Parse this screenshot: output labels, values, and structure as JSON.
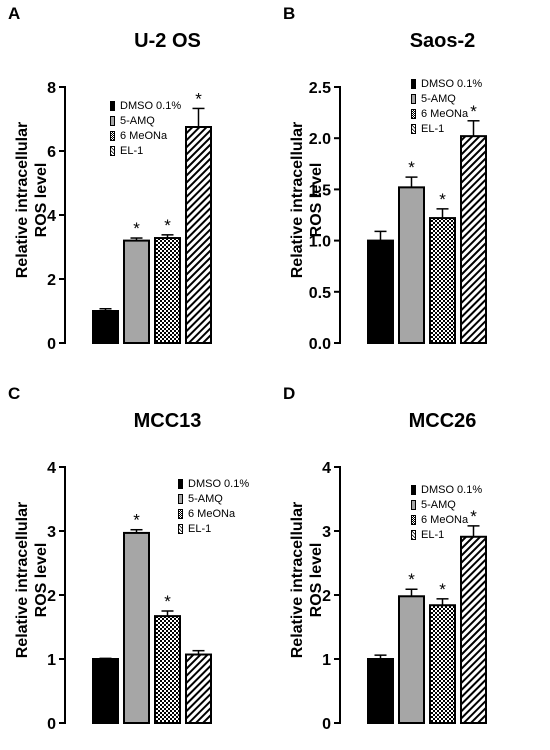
{
  "legend_fills": [
    "#000000",
    "#a6a6a6",
    "url(#checker)",
    "url(#diag)"
  ],
  "chart_data": [
    {
      "letter": "A",
      "type": "bar",
      "title": "U-2 OS",
      "ylabel_lines": [
        "Relative intracellular",
        "ROS level"
      ],
      "categories": [
        "DMSO 0.1%",
        "5-AMQ",
        "6 MeONa",
        "EL-1"
      ],
      "values": [
        1.0,
        3.2,
        3.28,
        6.75
      ],
      "errors": [
        0.07,
        0.08,
        0.1,
        0.58
      ],
      "significant": [
        false,
        true,
        true,
        true
      ],
      "ylim": [
        0,
        8
      ],
      "yticks": [
        0,
        2,
        4,
        6,
        8
      ],
      "ytick_labels": [
        "0",
        "2",
        "4",
        "6",
        "8"
      ],
      "legend": [
        "DMSO 0.1%",
        "5-AMQ",
        "6 MeONa",
        "EL-1"
      ]
    },
    {
      "letter": "B",
      "type": "bar",
      "title": "Saos-2",
      "ylabel_lines": [
        "Relative intracellular",
        "ROS level"
      ],
      "categories": [
        "DMSO 0.1%",
        "5-AMQ",
        "6 MeONa",
        "EL-1"
      ],
      "values": [
        1.0,
        1.52,
        1.22,
        2.02
      ],
      "errors": [
        0.09,
        0.1,
        0.09,
        0.15
      ],
      "significant": [
        false,
        true,
        true,
        true
      ],
      "ylim": [
        0,
        2.5
      ],
      "yticks": [
        0,
        0.5,
        1.0,
        1.5,
        2.0,
        2.5
      ],
      "ytick_labels": [
        "0.0",
        "0.5",
        "1.0",
        "1.5",
        "2.0",
        "2.5"
      ],
      "legend": [
        "DMSO 0.1%",
        "5-AMQ",
        "6 MeONa",
        "EL-1"
      ]
    },
    {
      "letter": "C",
      "type": "bar",
      "title": "MCC13",
      "ylabel_lines": [
        "Relative intracellular",
        "ROS level"
      ],
      "categories": [
        "DMSO 0.1%",
        "5-AMQ",
        "6 MeONa",
        "EL-1"
      ],
      "values": [
        1.0,
        2.97,
        1.67,
        1.07
      ],
      "errors": [
        0.01,
        0.05,
        0.08,
        0.06
      ],
      "significant": [
        false,
        true,
        true,
        false
      ],
      "ylim": [
        0,
        4
      ],
      "yticks": [
        0,
        1,
        2,
        3,
        4
      ],
      "ytick_labels": [
        "0",
        "1",
        "2",
        "3",
        "4"
      ],
      "legend": [
        "DMSO 0.1%",
        "5-AMQ",
        "6 MeONa",
        "EL-1"
      ]
    },
    {
      "letter": "D",
      "type": "bar",
      "title": "MCC26",
      "ylabel_lines": [
        "Relative intracellular",
        "ROS level"
      ],
      "categories": [
        "DMSO 0.1%",
        "5-AMQ",
        "6 MeONa",
        "EL-1"
      ],
      "values": [
        1.0,
        1.98,
        1.84,
        2.91
      ],
      "errors": [
        0.06,
        0.11,
        0.1,
        0.17
      ],
      "significant": [
        false,
        true,
        true,
        true
      ],
      "ylim": [
        0,
        4
      ],
      "yticks": [
        0,
        1,
        2,
        3,
        4
      ],
      "ytick_labels": [
        "0",
        "1",
        "2",
        "3",
        "4"
      ],
      "legend": [
        "DMSO 0.1%",
        "5-AMQ",
        "6 MeONa",
        "EL-1"
      ]
    }
  ],
  "significance_mark": "*"
}
